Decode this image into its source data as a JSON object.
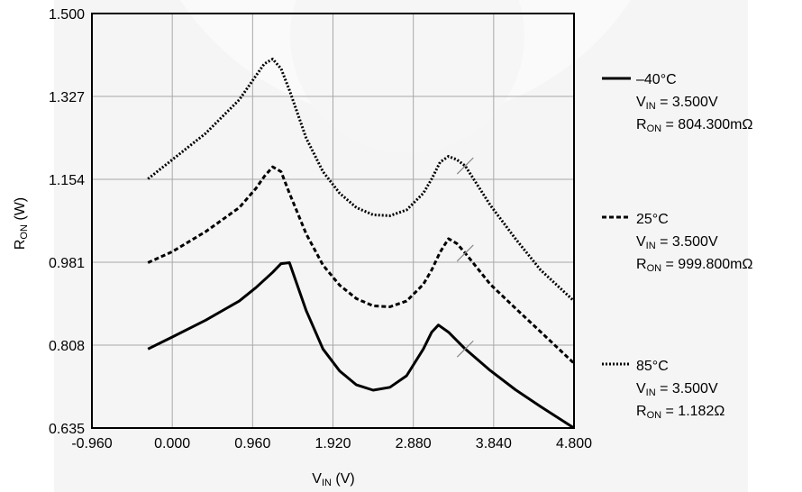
{
  "chart_data": {
    "type": "line",
    "title": "",
    "xlabel": {
      "main": "V",
      "sub": "IN",
      "unit": " (V)"
    },
    "ylabel": {
      "main": "R",
      "sub": "ON",
      "unit": " (W)"
    },
    "xlim": [
      -0.96,
      4.8
    ],
    "ylim": [
      0.635,
      1.5
    ],
    "x_ticks": [
      "-0.960",
      "0.000",
      "0.960",
      "1.920",
      "2.880",
      "3.840",
      "4.800"
    ],
    "y_ticks": [
      "0.635",
      "0.808",
      "0.981",
      "1.154",
      "1.327",
      "1.500"
    ],
    "grid": true,
    "legend_position": "right",
    "series": [
      {
        "name": "–40°C",
        "style": "solid",
        "color": "#000000",
        "cursor_x": 3.5,
        "vin_label": "3.500V",
        "ron_label": "804.300mΩ",
        "x": [
          -0.29,
          0.0,
          0.4,
          0.8,
          1.0,
          1.2,
          1.3,
          1.4,
          1.5,
          1.6,
          1.8,
          2.0,
          2.2,
          2.4,
          2.6,
          2.8,
          3.0,
          3.1,
          3.18,
          3.3,
          3.5,
          3.8,
          4.1,
          4.4,
          4.8
        ],
        "y": [
          0.8,
          0.825,
          0.86,
          0.9,
          0.928,
          0.96,
          0.978,
          0.98,
          0.93,
          0.88,
          0.8,
          0.754,
          0.725,
          0.714,
          0.72,
          0.744,
          0.8,
          0.835,
          0.85,
          0.835,
          0.8,
          0.755,
          0.715,
          0.68,
          0.635
        ]
      },
      {
        "name": "25°C",
        "style": "dashed",
        "color": "#000000",
        "cursor_x": 3.5,
        "vin_label": "3.500V",
        "ron_label": "999.800mΩ",
        "x": [
          -0.29,
          0.0,
          0.4,
          0.8,
          1.0,
          1.1,
          1.2,
          1.3,
          1.4,
          1.6,
          1.8,
          2.0,
          2.2,
          2.4,
          2.6,
          2.8,
          3.0,
          3.1,
          3.2,
          3.3,
          3.4,
          3.5,
          3.8,
          4.1,
          4.4,
          4.8
        ],
        "y": [
          0.98,
          1.003,
          1.045,
          1.095,
          1.135,
          1.16,
          1.18,
          1.17,
          1.125,
          1.04,
          0.975,
          0.933,
          0.905,
          0.89,
          0.888,
          0.9,
          0.935,
          0.965,
          1.002,
          1.03,
          1.02,
          1.0,
          0.935,
          0.885,
          0.836,
          0.77
        ]
      },
      {
        "name": "85°C",
        "style": "dotted",
        "color": "#000000",
        "cursor_x": 3.5,
        "vin_label": "3.500V",
        "ron_label": "1.182Ω",
        "x": [
          -0.29,
          0.0,
          0.4,
          0.8,
          1.0,
          1.1,
          1.2,
          1.3,
          1.4,
          1.6,
          1.8,
          2.0,
          2.2,
          2.4,
          2.6,
          2.8,
          3.0,
          3.1,
          3.2,
          3.3,
          3.4,
          3.5,
          3.8,
          4.1,
          4.4,
          4.8
        ],
        "y": [
          1.155,
          1.195,
          1.25,
          1.32,
          1.37,
          1.395,
          1.405,
          1.385,
          1.34,
          1.24,
          1.17,
          1.125,
          1.095,
          1.08,
          1.078,
          1.09,
          1.125,
          1.155,
          1.19,
          1.202,
          1.195,
          1.182,
          1.1,
          1.03,
          0.965,
          0.9
        ]
      }
    ]
  },
  "legend": {
    "vin_prefix": "V",
    "vin_sub": "IN",
    "ron_prefix": "R",
    "ron_sub": "ON",
    "equals": " = "
  }
}
